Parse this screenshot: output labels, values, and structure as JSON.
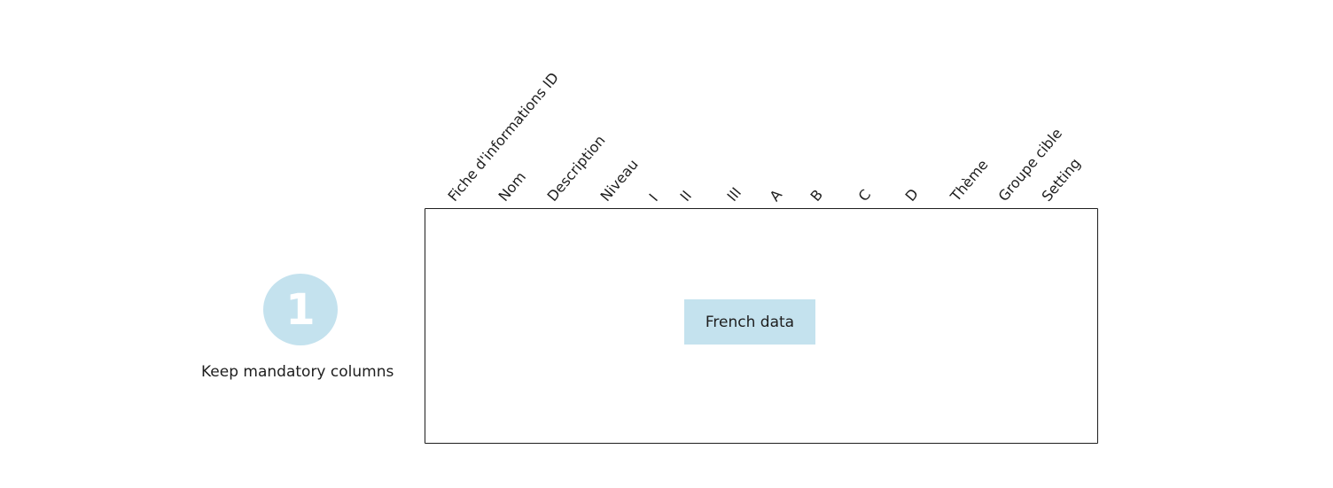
{
  "columns": [
    "Fiche d'informations ID",
    "Nom",
    "Description",
    "Niveau",
    "I",
    "II",
    "III",
    "A",
    "B",
    "C",
    "D",
    "Thème",
    "Groupe cible",
    "Setting"
  ],
  "table": {
    "content_label": "French data"
  },
  "step": {
    "number": "1",
    "caption": "Keep mandatory columns"
  },
  "colors": {
    "accent_fill": "#c4e2ee",
    "stroke": "#1e1e1e"
  }
}
